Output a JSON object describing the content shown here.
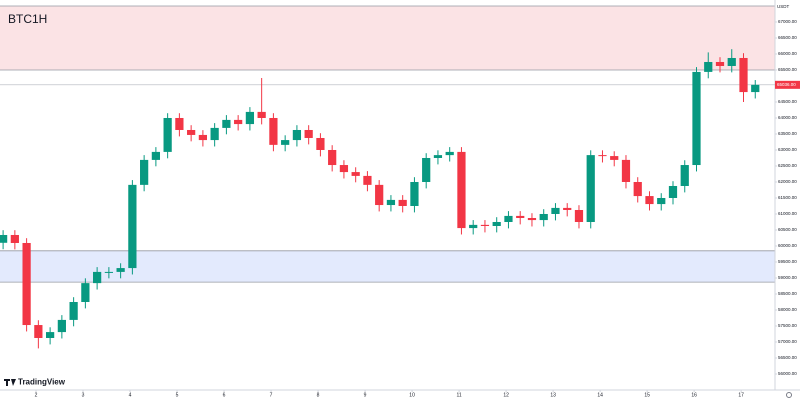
{
  "chart_data": {
    "type": "candlestick",
    "title": "BTC1H",
    "brand": "TradingView",
    "y_unit": "USDT",
    "up_color": "#089981",
    "down_color": "#f23645",
    "x": [
      1.3,
      1.55,
      1.8,
      2.05,
      2.3,
      2.55,
      2.8,
      3.05,
      3.3,
      3.55,
      3.8,
      4.05,
      4.3,
      4.55,
      4.8,
      5.05,
      5.3,
      5.55,
      5.8,
      6.05,
      6.3,
      6.55,
      6.8,
      7.05,
      7.3,
      7.55,
      7.8,
      8.05,
      8.3,
      8.55,
      8.8,
      9.05,
      9.3,
      9.55,
      9.8,
      10.05,
      10.3,
      10.55,
      10.8,
      11.05,
      11.3,
      11.55,
      11.8,
      12.05,
      12.3,
      12.55,
      12.8,
      13.05,
      13.3,
      13.55,
      13.8,
      14.05,
      14.3,
      14.55,
      14.8,
      15.05,
      15.3,
      15.55,
      15.8,
      16.05,
      16.3,
      16.55,
      16.8,
      17.05,
      17.3
    ],
    "open": [
      60100,
      60344,
      60094,
      57530,
      57125,
      57310,
      57690,
      58250,
      58840,
      59190,
      59190,
      59310,
      61910,
      62690,
      62940,
      64000,
      63625,
      63470,
      63310,
      63690,
      63940,
      63810,
      64190,
      64000,
      63160,
      63310,
      63625,
      63375,
      63000,
      62530,
      62310,
      62190,
      61910,
      61280,
      61440,
      61250,
      62000,
      62750,
      62840,
      62940,
      60560,
      60660,
      60625,
      60750,
      60940,
      60875,
      60810,
      61000,
      61190,
      61125,
      60750,
      62840,
      62810,
      62690,
      62000,
      61560,
      61310,
      61500,
      61875,
      62530,
      65440,
      65750,
      65625,
      65875,
      64810
    ],
    "high": [
      60494,
      60494,
      60244,
      57680,
      57460,
      57840,
      58400,
      58990,
      59340,
      59340,
      59460,
      62060,
      62840,
      63090,
      64150,
      64150,
      63775,
      63620,
      63840,
      64090,
      64090,
      64340,
      65250,
      64150,
      63460,
      63775,
      63775,
      63525,
      63150,
      62680,
      62460,
      62340,
      62060,
      61590,
      61590,
      62150,
      62900,
      62990,
      63090,
      63090,
      60810,
      60810,
      60900,
      61090,
      61090,
      61025,
      61150,
      61340,
      61340,
      61275,
      62990,
      62990,
      62960,
      62840,
      62150,
      61710,
      61650,
      62025,
      62680,
      65590,
      66050,
      65900,
      66150,
      66025,
      65186
    ],
    "low": [
      59900,
      59894,
      57330,
      56800,
      56925,
      57110,
      57490,
      58050,
      58640,
      58990,
      58990,
      59110,
      61710,
      62490,
      62740,
      63425,
      63270,
      63110,
      63110,
      63490,
      63610,
      63610,
      63800,
      62960,
      62960,
      63110,
      63175,
      62800,
      62330,
      62110,
      61990,
      61710,
      61080,
      61080,
      61050,
      61050,
      61800,
      62550,
      62640,
      60360,
      60360,
      60425,
      60425,
      60550,
      60675,
      60610,
      60610,
      60800,
      60925,
      60550,
      60550,
      62610,
      62490,
      61800,
      61360,
      61110,
      61110,
      61300,
      61675,
      62330,
      65240,
      65425,
      65425,
      64500,
      64610
    ],
    "close": [
      60344,
      60094,
      57530,
      57125,
      57310,
      57690,
      58250,
      58840,
      59190,
      59190,
      59310,
      61910,
      62690,
      62940,
      64000,
      63625,
      63470,
      63310,
      63690,
      63940,
      63810,
      64190,
      64000,
      63160,
      63310,
      63625,
      63375,
      63000,
      62530,
      62310,
      62190,
      61910,
      61280,
      61440,
      61250,
      62000,
      62750,
      62840,
      62940,
      60560,
      60660,
      60625,
      60750,
      60940,
      60875,
      60810,
      61000,
      61190,
      61125,
      60750,
      62840,
      62810,
      62690,
      62000,
      61560,
      61310,
      61500,
      61875,
      62530,
      65440,
      65750,
      65625,
      65875,
      64810,
      65036
    ],
    "xlim": [
      1.234,
      17.72
    ],
    "xticks": [
      2,
      3,
      4,
      5,
      6,
      7,
      8,
      9,
      10,
      11,
      12,
      13,
      14,
      15,
      16,
      17
    ],
    "ylim": [
      55500,
      67687
    ],
    "yticks": [
      {
        "value": 56000,
        "label": "56000.00"
      },
      {
        "value": 56500,
        "label": "56500.00"
      },
      {
        "value": 57000,
        "label": "57000.00"
      },
      {
        "value": 57500,
        "label": "57500.00"
      },
      {
        "value": 58000,
        "label": "58000.00"
      },
      {
        "value": 58500,
        "label": "58500.00"
      },
      {
        "value": 59000,
        "label": "59000.00"
      },
      {
        "value": 59500,
        "label": "59500.00"
      },
      {
        "value": 60000,
        "label": "60000.00"
      },
      {
        "value": 60500,
        "label": "60500.00"
      },
      {
        "value": 61000,
        "label": "61000.00"
      },
      {
        "value": 61500,
        "label": "61500.00"
      },
      {
        "value": 62000,
        "label": "62000.00"
      },
      {
        "value": 62500,
        "label": "62500.00"
      },
      {
        "value": 63000,
        "label": "63000.00"
      },
      {
        "value": 63500,
        "label": "63500.00"
      },
      {
        "value": 64000,
        "label": "64000.00"
      },
      {
        "value": 64500,
        "label": "64500.00"
      },
      {
        "value": 65000,
        "label": "65000.00"
      },
      {
        "value": 65500,
        "label": "65500.00"
      },
      {
        "value": 66000,
        "label": "66000.00"
      },
      {
        "value": 66500,
        "label": "66500.00"
      },
      {
        "value": 67000,
        "label": "67000.00"
      }
    ],
    "zones": [
      {
        "from": 65500,
        "to": 67500,
        "color": "#fbe3e5"
      },
      {
        "from": 58870,
        "to": 59850,
        "color": "#e3eafd"
      }
    ],
    "last_price": {
      "value": 65036,
      "label": "65036.00"
    }
  }
}
